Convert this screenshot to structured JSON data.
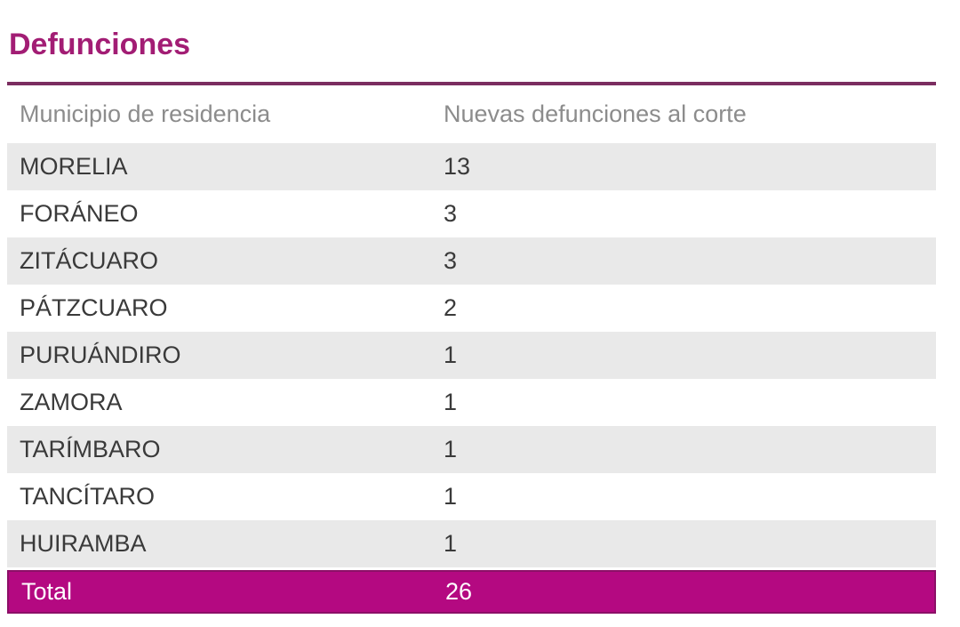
{
  "page": {
    "title": "Defunciones"
  },
  "table": {
    "columns": {
      "municipio": "Municipio de residencia",
      "defunciones": "Nuevas defunciones al corte"
    },
    "rows": [
      {
        "municipio": "MORELIA",
        "value": "13"
      },
      {
        "municipio": "FORÁNEO",
        "value": "3"
      },
      {
        "municipio": "ZITÁCUARO",
        "value": "3"
      },
      {
        "municipio": "PÁTZCUARO",
        "value": "2"
      },
      {
        "municipio": "PURUÁNDIRO",
        "value": "1"
      },
      {
        "municipio": "ZAMORA",
        "value": "1"
      },
      {
        "municipio": "TARÍMBARO",
        "value": "1"
      },
      {
        "municipio": "TANCÍTARO",
        "value": "1"
      },
      {
        "municipio": "HUIRAMBA",
        "value": "1"
      }
    ],
    "total": {
      "label": "Total",
      "value": "26"
    }
  },
  "colors": {
    "title": "#A21D74",
    "divider": "#7B2D60",
    "header_text": "#8C8C8C",
    "row_text": "#3A3A3A",
    "row_alt_bg": "#E9E9E9",
    "total_bg": "#B40981",
    "total_border": "#8C0F67",
    "total_text": "#FFFFFF"
  },
  "chart_data": {
    "type": "table",
    "title": "Defunciones",
    "columns": [
      "Municipio de residencia",
      "Nuevas defunciones al corte"
    ],
    "rows": [
      [
        "MORELIA",
        13
      ],
      [
        "FORÁNEO",
        3
      ],
      [
        "ZITÁCUARO",
        3
      ],
      [
        "PÁTZCUARO",
        2
      ],
      [
        "PURUÁNDIRO",
        1
      ],
      [
        "ZAMORA",
        1
      ],
      [
        "TARÍMBARO",
        1
      ],
      [
        "TANCÍTARO",
        1
      ],
      [
        "HUIRAMBA",
        1
      ]
    ],
    "total_row": [
      "Total",
      26
    ]
  }
}
